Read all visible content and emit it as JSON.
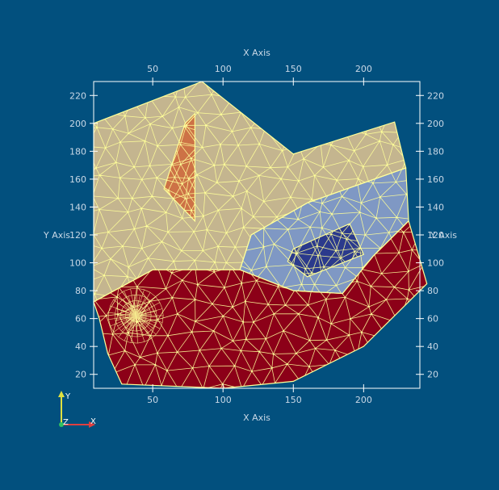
{
  "viewer": {
    "background_color": "#02507e",
    "mesh_line_color": "#ffff99",
    "axis_color": "#ffffff",
    "label_color": "#c9d8e6"
  },
  "axes": {
    "x_label_top": "X Axis",
    "x_label_bottom": "X Axis",
    "y_label_left": "Y Axis",
    "y_label_right": "Y Axis",
    "x_range": [
      8,
      240
    ],
    "y_range": [
      10,
      230
    ],
    "x_ticks": [
      50,
      100,
      150,
      200
    ],
    "y_ticks": [
      20,
      40,
      60,
      80,
      100,
      120,
      140,
      160,
      180,
      200,
      220
    ]
  },
  "regions": [
    {
      "name": "tan-region",
      "color": "#c4b58f",
      "points": [
        [
          8,
          200
        ],
        [
          85,
          230
        ],
        [
          150,
          178
        ],
        [
          222,
          201
        ],
        [
          230,
          168
        ],
        [
          160,
          143
        ],
        [
          120,
          120
        ],
        [
          112,
          95
        ],
        [
          50,
          95
        ],
        [
          8,
          72
        ]
      ]
    },
    {
      "name": "orange-region",
      "color": "#cd7246",
      "points": [
        [
          58,
          153
        ],
        [
          73,
          200
        ],
        [
          80,
          207
        ],
        [
          80,
          130
        ]
      ]
    },
    {
      "name": "light-blue-region",
      "color": "#7f98c4",
      "points": [
        [
          160,
          143
        ],
        [
          230,
          168
        ],
        [
          232,
          130
        ],
        [
          207,
          105
        ],
        [
          185,
          78
        ],
        [
          150,
          80
        ],
        [
          112,
          95
        ],
        [
          120,
          120
        ]
      ]
    },
    {
      "name": "dark-blue-region",
      "color": "#2b3a8c",
      "points": [
        [
          150,
          110
        ],
        [
          190,
          128
        ],
        [
          200,
          106
        ],
        [
          160,
          90
        ],
        [
          146,
          101
        ]
      ]
    },
    {
      "name": "red-region",
      "color": "#8c0018",
      "points": [
        [
          8,
          72
        ],
        [
          50,
          95
        ],
        [
          112,
          95
        ],
        [
          150,
          80
        ],
        [
          185,
          78
        ],
        [
          207,
          105
        ],
        [
          232,
          130
        ],
        [
          245,
          85
        ],
        [
          200,
          40
        ],
        [
          150,
          15
        ],
        [
          100,
          10
        ],
        [
          28,
          13
        ],
        [
          18,
          35
        ],
        [
          12,
          60
        ]
      ]
    }
  ],
  "mesh_focus": [
    38,
    62
  ],
  "orientation": {
    "x_label": "X",
    "y_label": "Y",
    "z_label": "Z",
    "x_color": "#e04040",
    "y_color": "#e0e040",
    "z_color": "#30c060"
  }
}
